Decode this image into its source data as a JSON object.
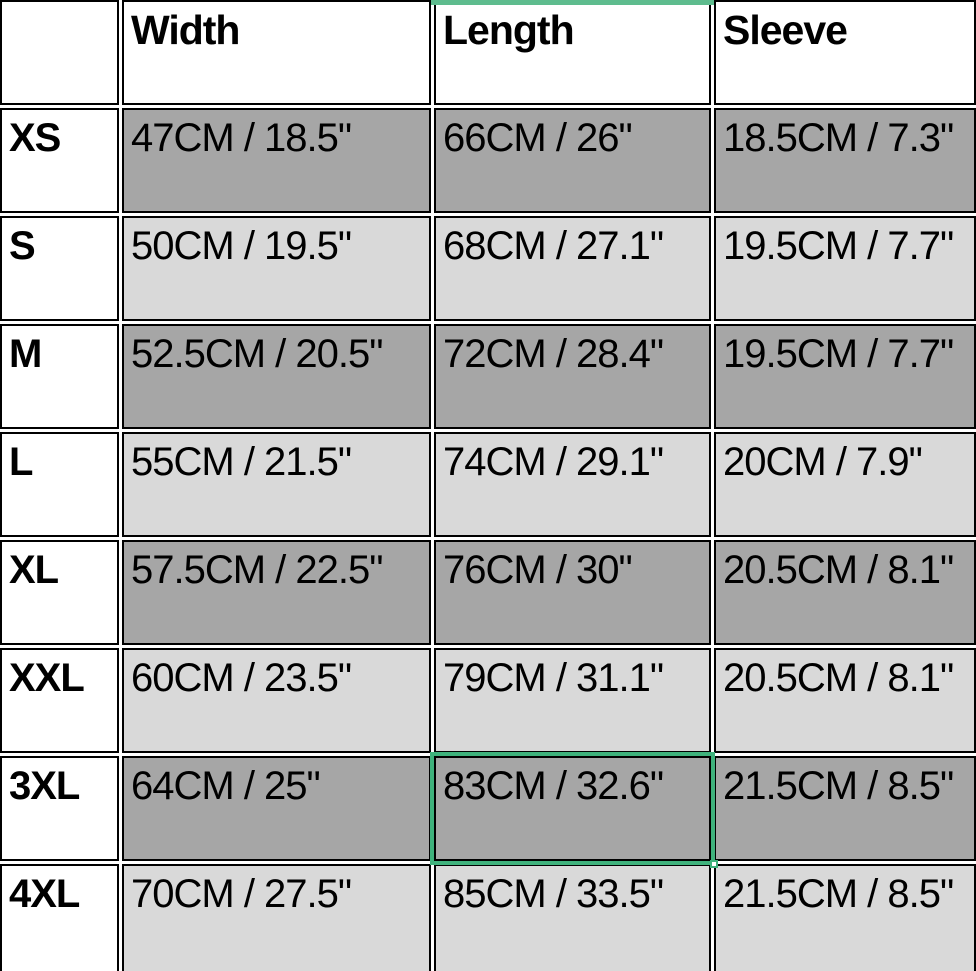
{
  "table": {
    "headers": {
      "corner": "",
      "width": "Width",
      "length": "Length",
      "sleeve": "Sleeve"
    },
    "rows": [
      {
        "label": "XS",
        "width": "47CM / 18.5\"",
        "length": "66CM / 26\"",
        "sleeve": "18.5CM / 7.3\""
      },
      {
        "label": "S",
        "width": "50CM / 19.5\"",
        "length": "68CM / 27.1\"",
        "sleeve": "19.5CM / 7.7\""
      },
      {
        "label": "M",
        "width": "52.5CM / 20.5\"",
        "length": "72CM / 28.4\"",
        "sleeve": "19.5CM / 7.7\""
      },
      {
        "label": "L",
        "width": "55CM / 21.5\"",
        "length": "74CM / 29.1\"",
        "sleeve": "20CM / 7.9\""
      },
      {
        "label": "XL",
        "width": "57.5CM / 22.5\"",
        "length": "76CM / 30\"",
        "sleeve": "20.5CM / 8.1\""
      },
      {
        "label": "XXL",
        "width": "60CM / 23.5\"",
        "length": "79CM / 31.1\"",
        "sleeve": "20.5CM / 8.1\""
      },
      {
        "label": "3XL",
        "width": "64CM / 25\"",
        "length": "83CM / 32.6\"",
        "sleeve": "21.5CM / 8.5\""
      },
      {
        "label": "4XL",
        "width": "70CM / 27.5\"",
        "length": "85CM / 33.5\"",
        "sleeve": "21.5CM / 8.5\""
      }
    ]
  },
  "selection": {
    "row": "3XL",
    "column": "Length",
    "value": "83CM / 32.6\""
  },
  "colors": {
    "row_dark": "#a6a6a6",
    "row_light": "#d9d9d9",
    "selection_green": "#3fb27c",
    "column_band_green": "#5ebc8e",
    "border": "#000000",
    "background": "#ffffff",
    "text": "#000000"
  }
}
